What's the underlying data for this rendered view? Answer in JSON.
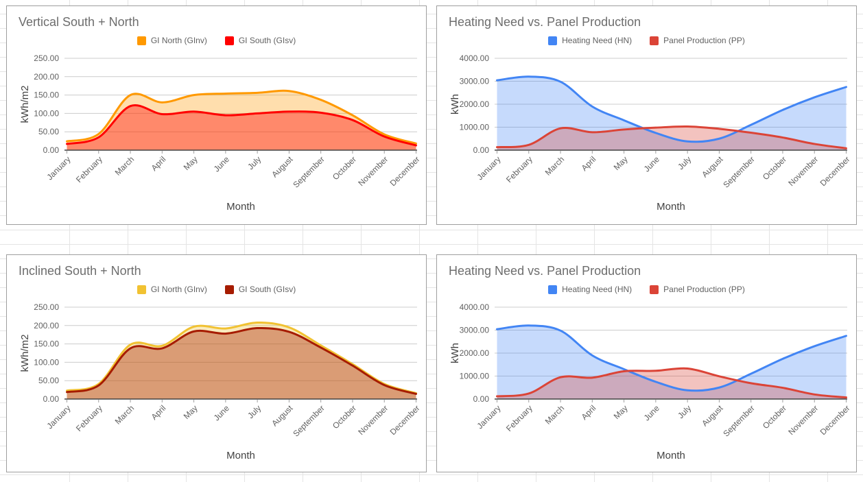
{
  "page": {
    "grid_line_color": "#e4e4e4",
    "card_border_color": "#9e9e9e"
  },
  "chart_data": [
    {
      "type": "area",
      "title": "Vertical South + North",
      "xlabel": "Month",
      "ylabel": "kWh/m2",
      "ylim": [
        0,
        250
      ],
      "y_tick_labels": [
        "0.00",
        "50.00",
        "100.00",
        "150.00",
        "200.00",
        "250.00"
      ],
      "grid": true,
      "legend_position": "top",
      "smooth": true,
      "categories": [
        "January",
        "February",
        "March",
        "April",
        "May",
        "June",
        "July",
        "August",
        "September",
        "October",
        "November",
        "December"
      ],
      "series": [
        {
          "name": "GI North (GInv)",
          "color": "#ff9900",
          "fill_opacity": 0.32,
          "values": [
            24,
            44,
            150,
            130,
            150,
            154,
            156,
            161,
            137,
            95,
            43,
            18
          ]
        },
        {
          "name": "GI South (GIsv)",
          "color": "#ff0000",
          "fill_opacity": 0.38,
          "values": [
            17,
            35,
            120,
            98,
            105,
            95,
            100,
            105,
            102,
            82,
            37,
            13
          ]
        }
      ]
    },
    {
      "type": "area",
      "title": "Heating Need vs. Panel Production",
      "xlabel": "Month",
      "ylabel": "kWh",
      "ylim": [
        0,
        4000
      ],
      "y_tick_labels": [
        "0.00",
        "1000.00",
        "2000.00",
        "3000.00",
        "4000.00"
      ],
      "grid": true,
      "legend_position": "top",
      "smooth": true,
      "categories": [
        "January",
        "February",
        "March",
        "April",
        "May",
        "June",
        "July",
        "August",
        "September",
        "October",
        "November",
        "December"
      ],
      "series": [
        {
          "name": "Heating Need (HN)",
          "color": "#4285f4",
          "fill_opacity": 0.3,
          "values": [
            3040,
            3200,
            2980,
            1900,
            1300,
            750,
            380,
            500,
            1100,
            1750,
            2300,
            2750
          ]
        },
        {
          "name": "Panel Production (PP)",
          "color": "#db4437",
          "fill_opacity": 0.32,
          "values": [
            130,
            230,
            950,
            780,
            900,
            980,
            1030,
            930,
            760,
            550,
            270,
            80
          ]
        }
      ]
    },
    {
      "type": "area",
      "title": "Inclined South + North",
      "xlabel": "Month",
      "ylabel": "kWh/m2",
      "ylim": [
        0,
        250
      ],
      "y_tick_labels": [
        "0.00",
        "50.00",
        "100.00",
        "150.00",
        "200.00",
        "250.00"
      ],
      "grid": true,
      "legend_position": "top",
      "smooth": true,
      "categories": [
        "January",
        "February",
        "March",
        "April",
        "May",
        "June",
        "July",
        "August",
        "September",
        "October",
        "November",
        "December"
      ],
      "series": [
        {
          "name": "GI North (GInv)",
          "color": "#f1c232",
          "fill_opacity": 0.32,
          "values": [
            23,
            41,
            148,
            145,
            197,
            192,
            208,
            195,
            146,
            95,
            41,
            16
          ]
        },
        {
          "name": "GI South (GIsv)",
          "color": "#a61c00",
          "fill_opacity": 0.38,
          "values": [
            19,
            37,
            138,
            138,
            184,
            178,
            193,
            183,
            140,
            91,
            38,
            14
          ]
        }
      ]
    },
    {
      "type": "area",
      "title": "Heating Need vs. Panel Production",
      "xlabel": "Month",
      "ylabel": "kWh",
      "ylim": [
        0,
        4000
      ],
      "y_tick_labels": [
        "0.00",
        "1000.00",
        "2000.00",
        "3000.00",
        "4000.00"
      ],
      "grid": true,
      "legend_position": "top",
      "smooth": true,
      "categories": [
        "January",
        "February",
        "March",
        "April",
        "May",
        "June",
        "July",
        "August",
        "September",
        "October",
        "November",
        "December"
      ],
      "series": [
        {
          "name": "Heating Need (HN)",
          "color": "#4285f4",
          "fill_opacity": 0.3,
          "values": [
            3040,
            3200,
            2980,
            1900,
            1300,
            750,
            380,
            500,
            1100,
            1750,
            2300,
            2750
          ]
        },
        {
          "name": "Panel Production (PP)",
          "color": "#db4437",
          "fill_opacity": 0.32,
          "values": [
            120,
            240,
            950,
            930,
            1210,
            1230,
            1330,
            990,
            690,
            490,
            200,
            70
          ]
        }
      ]
    }
  ]
}
